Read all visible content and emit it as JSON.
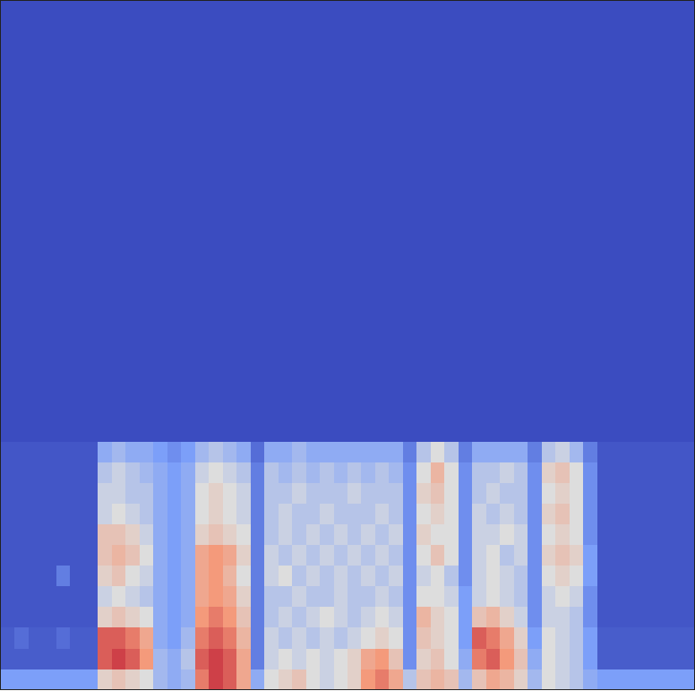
{
  "chart_data": {
    "type": "heatmap",
    "tick_labels": false,
    "grid": false,
    "xlim": [
      0,
      100
    ],
    "ylim": [
      0,
      100
    ],
    "clim": [
      0,
      1
    ],
    "x_bins": [
      0,
      2,
      4,
      6,
      8,
      10,
      12,
      14,
      16,
      18,
      20,
      22,
      24,
      26,
      28,
      30,
      32,
      34,
      36,
      38,
      40,
      42,
      44,
      46,
      48,
      50,
      52,
      54,
      56,
      58,
      60,
      62,
      64,
      66,
      68,
      70,
      72,
      74,
      76,
      78,
      80,
      82,
      84,
      86,
      88,
      90,
      92,
      94,
      96,
      98,
      100
    ],
    "y_bins": [
      0,
      3,
      6,
      9,
      12,
      15,
      18,
      21,
      24,
      27,
      30,
      33,
      36,
      100
    ],
    "cells": [
      [
        0.25,
        0.25,
        0.25,
        0.25,
        0.25,
        0.25,
        0.25,
        0.55,
        0.6,
        0.55,
        0.5,
        0.35,
        0.3,
        0.35,
        0.8,
        0.9,
        0.85,
        0.7,
        0.3,
        0.5,
        0.55,
        0.6,
        0.5,
        0.45,
        0.5,
        0.55,
        0.75,
        0.8,
        0.7,
        0.4,
        0.6,
        0.65,
        0.6,
        0.35,
        0.6,
        0.7,
        0.65,
        0.55,
        0.35,
        0.5,
        0.45,
        0.4,
        0.3,
        0.25,
        0.25,
        0.25,
        0.25,
        0.25,
        0.25,
        0.25
      ],
      [
        0.05,
        0.05,
        0.05,
        0.05,
        0.05,
        0.05,
        0.05,
        0.85,
        0.9,
        0.85,
        0.75,
        0.35,
        0.3,
        0.4,
        0.85,
        0.9,
        0.85,
        0.7,
        0.15,
        0.45,
        0.5,
        0.45,
        0.5,
        0.45,
        0.5,
        0.55,
        0.7,
        0.75,
        0.6,
        0.2,
        0.55,
        0.6,
        0.5,
        0.3,
        0.8,
        0.85,
        0.75,
        0.6,
        0.3,
        0.5,
        0.45,
        0.4,
        0.25,
        0.05,
        0.05,
        0.05,
        0.05,
        0.05,
        0.05,
        0.05
      ],
      [
        0.05,
        0.1,
        0.05,
        0.05,
        0.1,
        0.05,
        0.05,
        0.85,
        0.85,
        0.8,
        0.7,
        0.3,
        0.25,
        0.35,
        0.8,
        0.85,
        0.8,
        0.65,
        0.15,
        0.45,
        0.4,
        0.45,
        0.4,
        0.45,
        0.4,
        0.45,
        0.5,
        0.55,
        0.5,
        0.2,
        0.6,
        0.55,
        0.5,
        0.25,
        0.85,
        0.8,
        0.7,
        0.55,
        0.25,
        0.5,
        0.45,
        0.4,
        0.25,
        0.05,
        0.05,
        0.05,
        0.05,
        0.05,
        0.05,
        0.05
      ],
      [
        0.03,
        0.03,
        0.03,
        0.03,
        0.03,
        0.03,
        0.03,
        0.55,
        0.6,
        0.55,
        0.5,
        0.3,
        0.25,
        0.3,
        0.75,
        0.8,
        0.75,
        0.6,
        0.15,
        0.4,
        0.45,
        0.4,
        0.45,
        0.5,
        0.45,
        0.4,
        0.45,
        0.5,
        0.45,
        0.2,
        0.65,
        0.55,
        0.5,
        0.25,
        0.6,
        0.65,
        0.55,
        0.45,
        0.2,
        0.45,
        0.45,
        0.4,
        0.2,
        0.03,
        0.03,
        0.03,
        0.03,
        0.03,
        0.03,
        0.03
      ],
      [
        0.03,
        0.03,
        0.03,
        0.03,
        0.03,
        0.03,
        0.03,
        0.45,
        0.5,
        0.45,
        0.4,
        0.3,
        0.25,
        0.3,
        0.7,
        0.75,
        0.7,
        0.55,
        0.15,
        0.4,
        0.4,
        0.45,
        0.4,
        0.4,
        0.45,
        0.4,
        0.4,
        0.45,
        0.4,
        0.2,
        0.5,
        0.5,
        0.45,
        0.25,
        0.45,
        0.5,
        0.45,
        0.4,
        0.2,
        0.45,
        0.5,
        0.45,
        0.2,
        0.03,
        0.03,
        0.03,
        0.03,
        0.03,
        0.03,
        0.03
      ],
      [
        0.03,
        0.03,
        0.03,
        0.03,
        0.15,
        0.03,
        0.03,
        0.55,
        0.6,
        0.5,
        0.45,
        0.3,
        0.25,
        0.3,
        0.7,
        0.75,
        0.65,
        0.5,
        0.15,
        0.45,
        0.5,
        0.4,
        0.45,
        0.4,
        0.45,
        0.4,
        0.45,
        0.4,
        0.45,
        0.2,
        0.45,
        0.5,
        0.4,
        0.2,
        0.45,
        0.5,
        0.45,
        0.4,
        0.2,
        0.5,
        0.55,
        0.5,
        0.25,
        0.03,
        0.03,
        0.03,
        0.03,
        0.03,
        0.03,
        0.03
      ],
      [
        0.03,
        0.03,
        0.03,
        0.03,
        0.03,
        0.03,
        0.03,
        0.6,
        0.65,
        0.6,
        0.5,
        0.3,
        0.25,
        0.3,
        0.7,
        0.75,
        0.7,
        0.55,
        0.15,
        0.45,
        0.4,
        0.45,
        0.4,
        0.45,
        0.4,
        0.45,
        0.4,
        0.45,
        0.4,
        0.2,
        0.5,
        0.6,
        0.5,
        0.2,
        0.45,
        0.5,
        0.4,
        0.45,
        0.2,
        0.55,
        0.6,
        0.55,
        0.25,
        0.03,
        0.03,
        0.03,
        0.03,
        0.03,
        0.03,
        0.03
      ],
      [
        0.03,
        0.03,
        0.03,
        0.03,
        0.03,
        0.03,
        0.03,
        0.6,
        0.6,
        0.55,
        0.45,
        0.3,
        0.25,
        0.3,
        0.55,
        0.6,
        0.55,
        0.5,
        0.15,
        0.4,
        0.45,
        0.4,
        0.45,
        0.4,
        0.45,
        0.4,
        0.45,
        0.4,
        0.45,
        0.2,
        0.55,
        0.5,
        0.5,
        0.2,
        0.45,
        0.45,
        0.5,
        0.45,
        0.2,
        0.5,
        0.55,
        0.5,
        0.2,
        0.03,
        0.03,
        0.03,
        0.03,
        0.03,
        0.03,
        0.03
      ],
      [
        0.03,
        0.03,
        0.03,
        0.03,
        0.03,
        0.03,
        0.03,
        0.45,
        0.5,
        0.45,
        0.4,
        0.3,
        0.25,
        0.3,
        0.5,
        0.55,
        0.5,
        0.45,
        0.15,
        0.4,
        0.45,
        0.4,
        0.4,
        0.45,
        0.4,
        0.4,
        0.4,
        0.45,
        0.4,
        0.2,
        0.5,
        0.55,
        0.5,
        0.2,
        0.45,
        0.4,
        0.45,
        0.4,
        0.2,
        0.55,
        0.6,
        0.5,
        0.2,
        0.03,
        0.03,
        0.03,
        0.03,
        0.03,
        0.03,
        0.03
      ],
      [
        0.03,
        0.03,
        0.03,
        0.03,
        0.03,
        0.03,
        0.03,
        0.45,
        0.45,
        0.4,
        0.4,
        0.3,
        0.25,
        0.3,
        0.5,
        0.55,
        0.5,
        0.45,
        0.15,
        0.4,
        0.4,
        0.45,
        0.4,
        0.4,
        0.4,
        0.45,
        0.4,
        0.4,
        0.4,
        0.2,
        0.55,
        0.6,
        0.5,
        0.2,
        0.4,
        0.45,
        0.4,
        0.4,
        0.2,
        0.5,
        0.55,
        0.5,
        0.2,
        0.03,
        0.03,
        0.03,
        0.03,
        0.03,
        0.03,
        0.03
      ],
      [
        0.03,
        0.03,
        0.03,
        0.03,
        0.03,
        0.03,
        0.03,
        0.4,
        0.45,
        0.4,
        0.35,
        0.3,
        0.25,
        0.3,
        0.45,
        0.5,
        0.45,
        0.4,
        0.15,
        0.4,
        0.35,
        0.4,
        0.35,
        0.4,
        0.35,
        0.4,
        0.35,
        0.4,
        0.35,
        0.2,
        0.5,
        0.65,
        0.5,
        0.2,
        0.4,
        0.4,
        0.45,
        0.4,
        0.2,
        0.55,
        0.6,
        0.5,
        0.2,
        0.03,
        0.03,
        0.03,
        0.03,
        0.03,
        0.03,
        0.03
      ],
      [
        0.03,
        0.03,
        0.03,
        0.03,
        0.03,
        0.03,
        0.03,
        0.3,
        0.35,
        0.3,
        0.3,
        0.25,
        0.2,
        0.25,
        0.35,
        0.4,
        0.35,
        0.3,
        0.1,
        0.3,
        0.3,
        0.35,
        0.3,
        0.3,
        0.3,
        0.3,
        0.3,
        0.3,
        0.3,
        0.15,
        0.4,
        0.5,
        0.4,
        0.15,
        0.3,
        0.3,
        0.3,
        0.3,
        0.15,
        0.4,
        0.45,
        0.35,
        0.15,
        0.03,
        0.03,
        0.03,
        0.03,
        0.03,
        0.03,
        0.03
      ],
      [
        0,
        0,
        0,
        0,
        0,
        0,
        0,
        0,
        0,
        0,
        0,
        0,
        0,
        0,
        0,
        0,
        0,
        0,
        0,
        0,
        0,
        0,
        0,
        0,
        0,
        0,
        0,
        0,
        0,
        0,
        0,
        0,
        0,
        0,
        0,
        0,
        0,
        0,
        0,
        0,
        0,
        0,
        0,
        0,
        0,
        0,
        0,
        0,
        0,
        0
      ]
    ]
  }
}
